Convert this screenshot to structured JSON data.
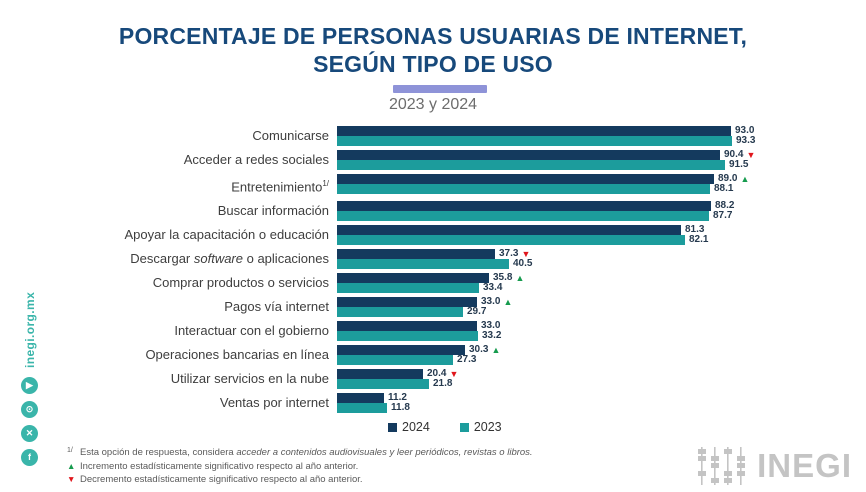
{
  "header": {
    "title_line1": "PORCENTAJE DE PERSONAS USUARIAS DE INTERNET,",
    "title_line2": "SEGÚN TIPO DE USO",
    "subtitle": "2023 y 2024"
  },
  "colors": {
    "title_blue": "#17497b",
    "accent_purple": "#8e93d8",
    "navy_2024": "#143a5e",
    "teal_2023": "#1c9c9c",
    "increase_green": "#169b4e",
    "decrease_red": "#e0161c",
    "sidebar_teal": "#3ab5aa",
    "logo_gray": "#c4c4c4"
  },
  "chart_data": {
    "type": "bar",
    "orientation": "horizontal",
    "title": "PORCENTAJE DE PERSONAS USUARIAS DE INTERNET, SEGÚN TIPO DE USO",
    "subtitle": "2023 y 2024",
    "xlim": [
      0,
      100
    ],
    "value_unit": "percent",
    "grid": false,
    "legend_position": "bottom",
    "categories": [
      "Comunicarse",
      "Acceder a redes sociales",
      "Entretenimiento",
      "Buscar información",
      "Apoyar la capacitación o educación",
      "Descargar software o aplicaciones",
      "Comprar productos o servicios",
      "Pagos vía internet",
      "Interactuar con el gobierno",
      "Operaciones bancarias en línea",
      "Utilizar servicios en la nube",
      "Ventas por internet"
    ],
    "category_styles": {
      "2": {
        "sup": "1/"
      },
      "5": {
        "italic_word": "software"
      }
    },
    "series": [
      {
        "name": "2024",
        "color": "#143a5e",
        "values": [
          93.0,
          90.4,
          89.0,
          88.2,
          81.3,
          37.3,
          35.8,
          33.0,
          33.0,
          30.3,
          20.4,
          11.2
        ]
      },
      {
        "name": "2023",
        "color": "#1c9c9c",
        "values": [
          93.3,
          91.5,
          88.1,
          87.7,
          82.1,
          40.5,
          33.4,
          29.7,
          33.2,
          27.3,
          21.8,
          11.8
        ]
      }
    ],
    "indicators": [
      null,
      "down",
      "up",
      null,
      null,
      "down",
      "up",
      "up",
      null,
      "up",
      "down",
      null
    ],
    "indicator_glyphs": {
      "up": "▲",
      "down": "▼"
    },
    "legend": [
      "2024",
      "2023"
    ]
  },
  "footnotes": {
    "note1_marker": "1/",
    "note1_pre": "Esta opción de respuesta, considera ",
    "note1_italic": "acceder a contenidos audiovisuales y leer periódicos, revistas o libros.",
    "note2_marker": "▲",
    "note2_text": "Incremento estadísticamente significativo respecto al año anterior.",
    "note3_marker": "▼",
    "note3_text": "Decremento estadísticamente significativo respecto al año anterior."
  },
  "sidebar": {
    "website": "inegi.org.mx",
    "icons": [
      {
        "name": "youtube-icon",
        "glyph": "▶"
      },
      {
        "name": "instagram-icon",
        "glyph": "⊙"
      },
      {
        "name": "x-icon",
        "glyph": "✕"
      },
      {
        "name": "facebook-icon",
        "glyph": "f"
      }
    ]
  },
  "logo": {
    "text": "INEGI"
  }
}
